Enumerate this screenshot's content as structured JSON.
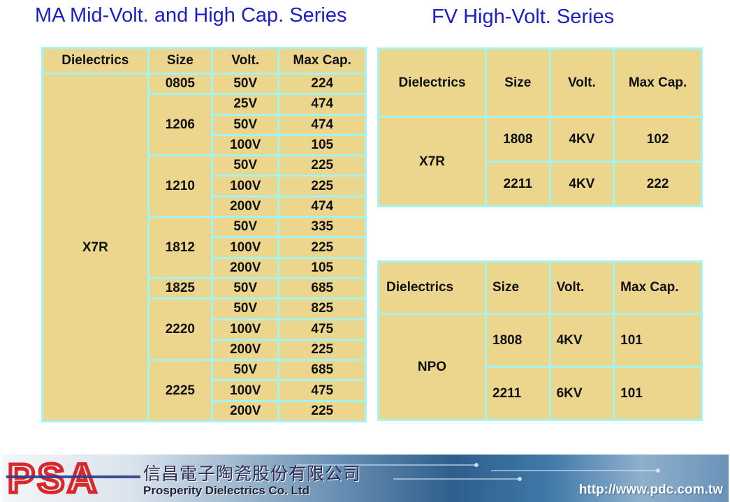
{
  "titles": {
    "ma": "MA Mid-Volt. and High Cap. Series",
    "fv": "FV High-Volt. Series"
  },
  "headers": {
    "dielectrics": "Dielectrics",
    "size": "Size",
    "volt": "Volt.",
    "max_cap": "Max Cap."
  },
  "ma_table": {
    "dielectric": "X7R",
    "groups": [
      {
        "size": "0805",
        "rows": [
          {
            "volt": "50V",
            "cap": "224"
          }
        ]
      },
      {
        "size": "1206",
        "rows": [
          {
            "volt": "25V",
            "cap": "474"
          },
          {
            "volt": "50V",
            "cap": "474"
          },
          {
            "volt": "100V",
            "cap": "105"
          }
        ]
      },
      {
        "size": "1210",
        "rows": [
          {
            "volt": "50V",
            "cap": "225"
          },
          {
            "volt": "100V",
            "cap": "225"
          },
          {
            "volt": "200V",
            "cap": "474"
          }
        ]
      },
      {
        "size": "1812",
        "rows": [
          {
            "volt": "50V",
            "cap": "335"
          },
          {
            "volt": "100V",
            "cap": "225"
          },
          {
            "volt": "200V",
            "cap": "105"
          }
        ]
      },
      {
        "size": "1825",
        "rows": [
          {
            "volt": "50V",
            "cap": "685"
          }
        ]
      },
      {
        "size": "2220",
        "rows": [
          {
            "volt": "50V",
            "cap": "825"
          },
          {
            "volt": "100V",
            "cap": "475"
          },
          {
            "volt": "200V",
            "cap": "225"
          }
        ]
      },
      {
        "size": "2225",
        "rows": [
          {
            "volt": "50V",
            "cap": "685"
          },
          {
            "volt": "100V",
            "cap": "475"
          },
          {
            "volt": "200V",
            "cap": "225"
          }
        ]
      }
    ]
  },
  "fv_x7r": {
    "dielectric": "X7R",
    "rows": [
      {
        "size": "1808",
        "volt": "4KV",
        "cap": "102"
      },
      {
        "size": "2211",
        "volt": "4KV",
        "cap": "222"
      }
    ]
  },
  "fv_npo": {
    "dielectric": "NPO",
    "rows": [
      {
        "size": "1808",
        "volt": "4KV",
        "cap": "101"
      },
      {
        "size": "2211",
        "volt": "6KV",
        "cap": "101"
      }
    ]
  },
  "footer": {
    "logo_text": "PSA",
    "company_cn": "信昌電子陶瓷股份有限公司",
    "company_en": "Prosperity Dielectrics Co. Ltd",
    "url": "http://www.pdc.com.tw"
  },
  "colors": {
    "title": "#1e1ec8",
    "cell_fill": "#ecd68e",
    "grid_line": "#a6f4f2",
    "logo_red": "#d8282c",
    "logo_blue": "#2c3a8c"
  }
}
